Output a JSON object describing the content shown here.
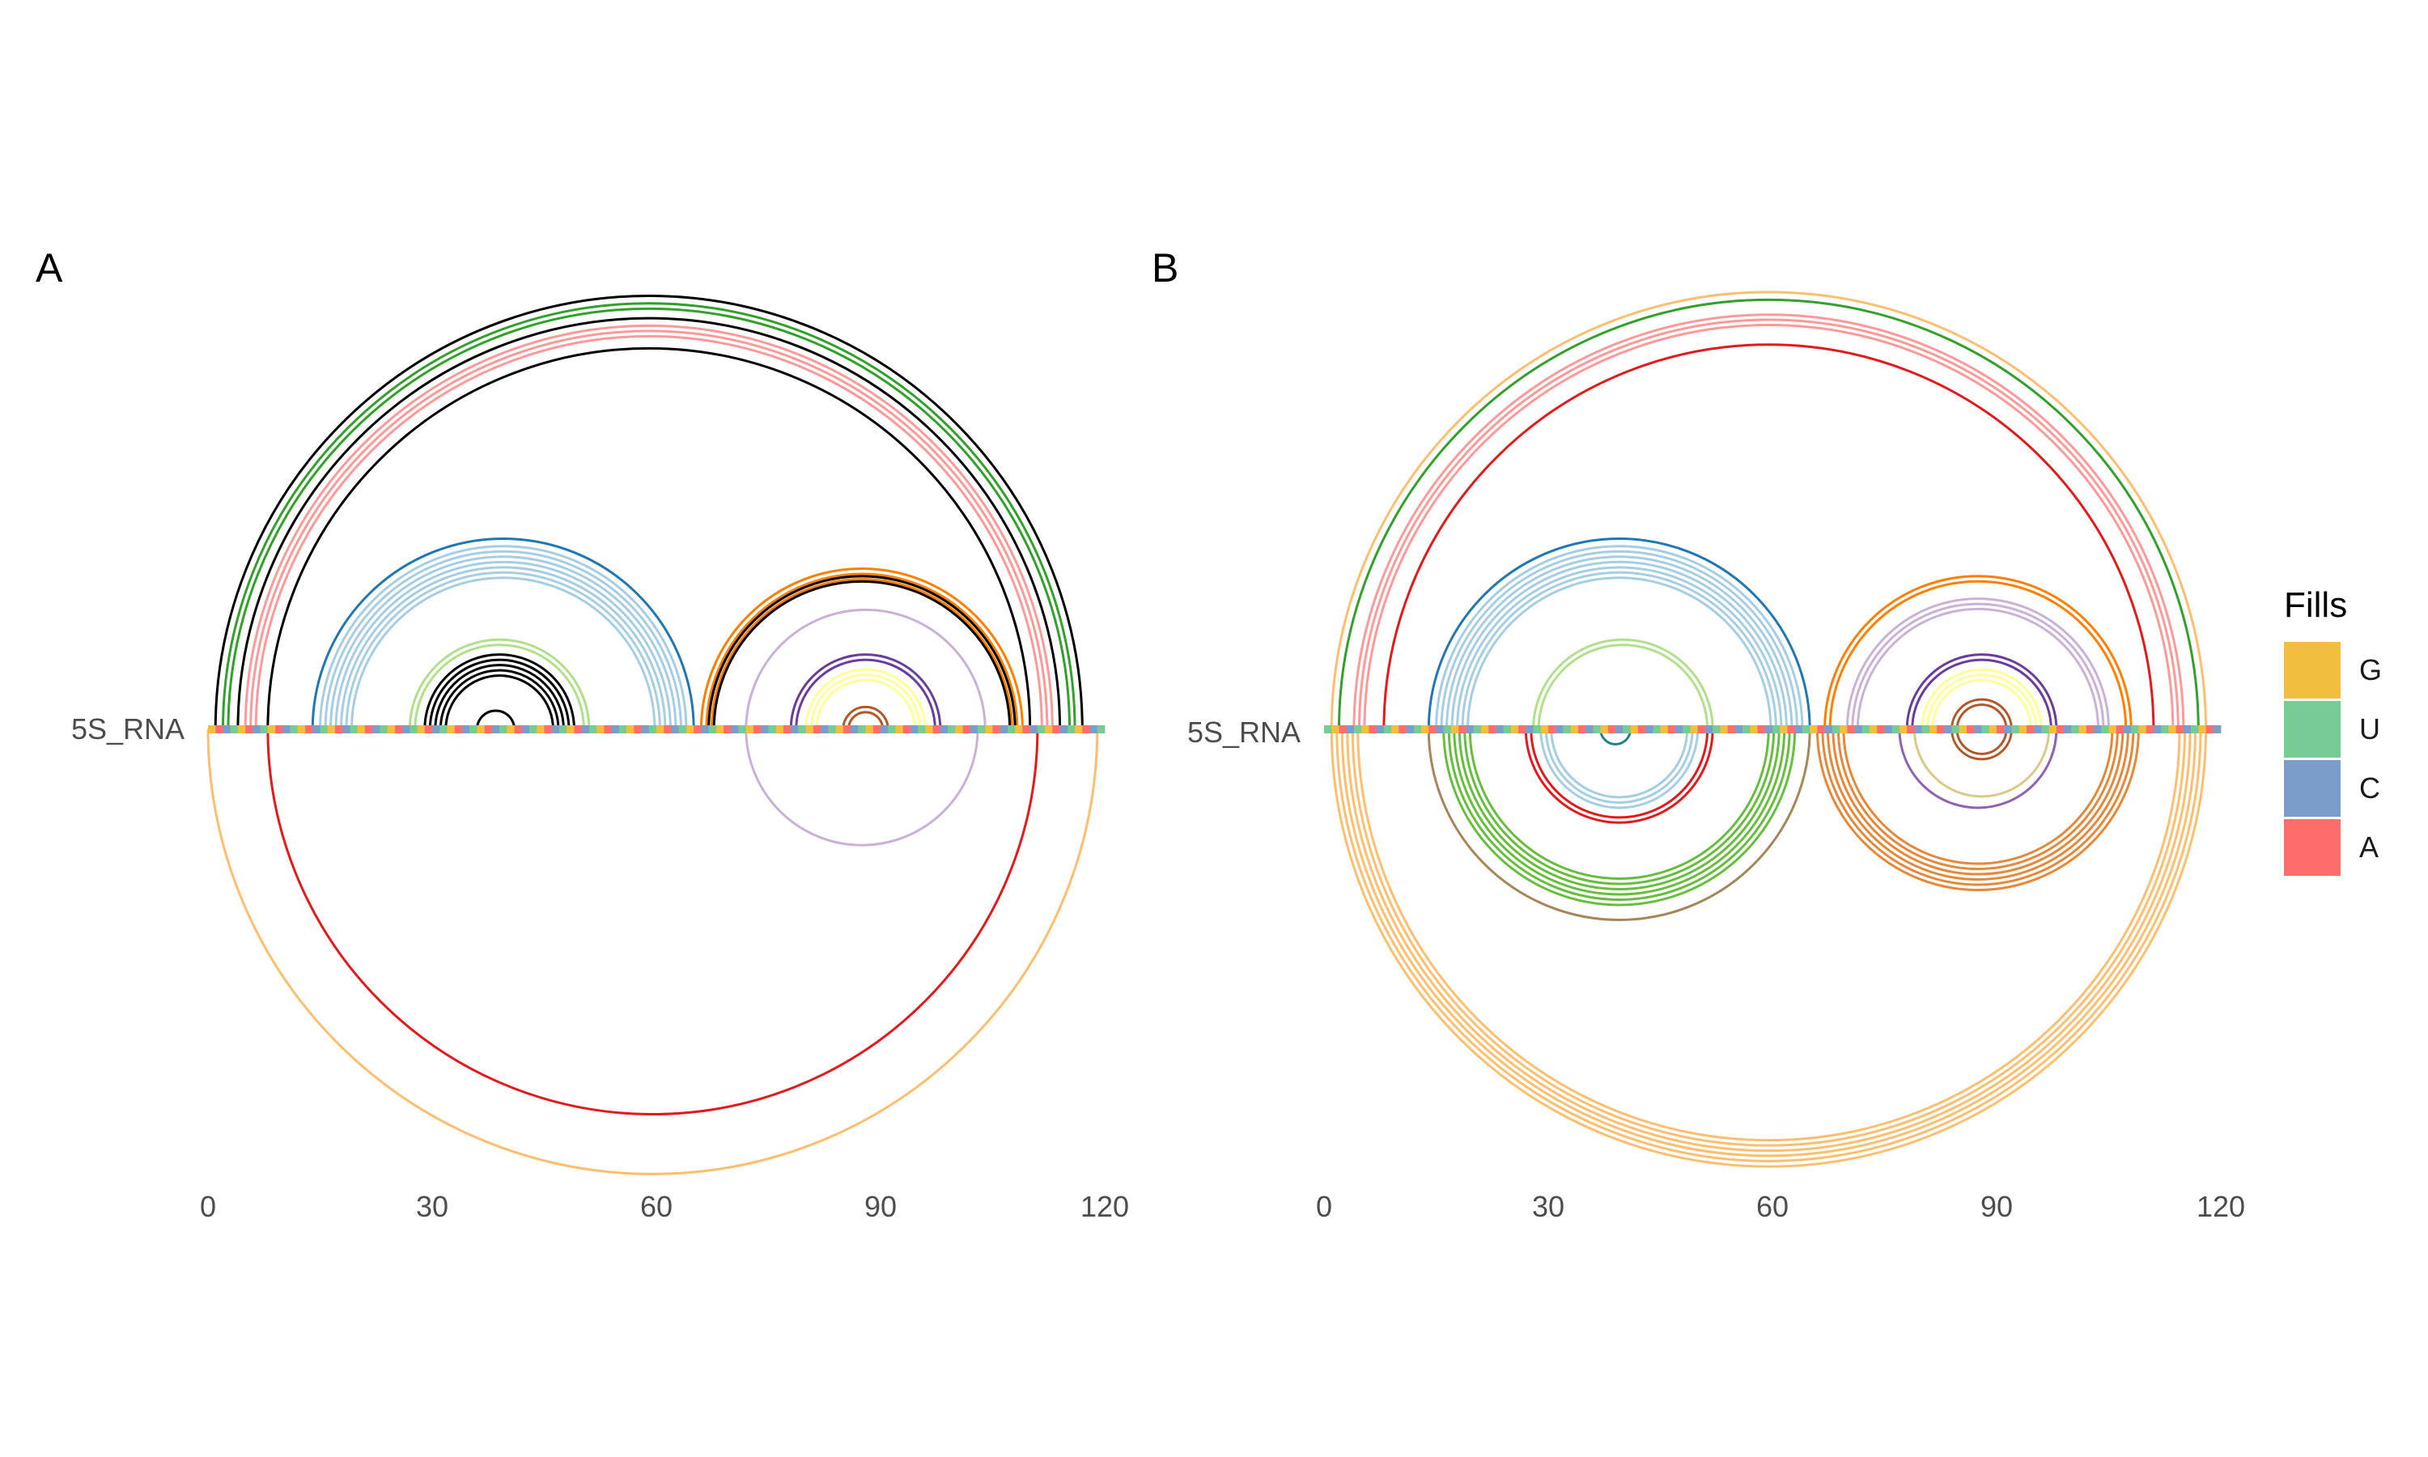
{
  "chart_data": [
    {
      "type": "arc",
      "panel": "A",
      "track_label": "5S_RNA",
      "xlim": [
        0,
        120
      ],
      "x_ticks": [
        "0",
        "30",
        "60",
        "90",
        "120"
      ],
      "sequence_length": 120,
      "arcs": [
        {
          "start": 1,
          "end": 117,
          "side": "top",
          "color": "#000000",
          "count": 1
        },
        {
          "start": 2,
          "end": 116,
          "side": "top",
          "color": "#33a02c",
          "count": 2
        },
        {
          "start": 4,
          "end": 114,
          "side": "top",
          "color": "#000000",
          "count": 1
        },
        {
          "start": 5,
          "end": 113,
          "side": "top",
          "color": "#fb9a99",
          "count": 3
        },
        {
          "start": 8,
          "end": 110,
          "side": "top",
          "color": "#000000",
          "count": 1
        },
        {
          "start": 14,
          "end": 65,
          "side": "top",
          "color": "#1f78b4",
          "count": 1
        },
        {
          "start": 15,
          "end": 64,
          "side": "top",
          "color": "#a6cee3",
          "count": 7
        },
        {
          "start": 27,
          "end": 51,
          "side": "top",
          "color": "#b2df8a",
          "count": 2
        },
        {
          "start": 29,
          "end": 49,
          "side": "top",
          "color": "#000000",
          "count": 5
        },
        {
          "start": 36,
          "end": 41,
          "side": "top",
          "color": "#000000",
          "count": 1
        },
        {
          "start": 66,
          "end": 109,
          "side": "top",
          "color": "#ff7f00",
          "count": 3
        },
        {
          "start": 67,
          "end": 108,
          "side": "top",
          "color": "#000000",
          "count": 2
        },
        {
          "start": 72,
          "end": 104,
          "side": "top",
          "color": "#cab2d6",
          "count": 1
        },
        {
          "start": 78,
          "end": 98,
          "side": "top",
          "color": "#6a3d9a",
          "count": 2
        },
        {
          "start": 80,
          "end": 96,
          "side": "top",
          "color": "#ffff99",
          "count": 3
        },
        {
          "start": 85,
          "end": 91,
          "side": "top",
          "color": "#b15928",
          "count": 2
        },
        {
          "start": 0,
          "end": 119,
          "side": "bottom",
          "color": "#fdbf6f",
          "count": 1
        },
        {
          "start": 8,
          "end": 111,
          "side": "bottom",
          "color": "#e31a1c",
          "count": 1
        },
        {
          "start": 72,
          "end": 103,
          "side": "bottom",
          "color": "#cab2d6",
          "count": 1
        }
      ]
    },
    {
      "type": "arc",
      "panel": "B",
      "track_label": "5S_RNA",
      "xlim": [
        0,
        120
      ],
      "x_ticks": [
        "0",
        "30",
        "60",
        "90",
        "120"
      ],
      "sequence_length": 120,
      "arcs": [
        {
          "start": 1,
          "end": 118,
          "side": "top",
          "color": "#fdbf6f",
          "count": 1
        },
        {
          "start": 2,
          "end": 117,
          "side": "top",
          "color": "#33a02c",
          "count": 1
        },
        {
          "start": 4,
          "end": 115,
          "side": "top",
          "color": "#fb9a99",
          "count": 3
        },
        {
          "start": 8,
          "end": 111,
          "side": "top",
          "color": "#e31a1c",
          "count": 1
        },
        {
          "start": 14,
          "end": 65,
          "side": "top",
          "color": "#1f78b4",
          "count": 1
        },
        {
          "start": 15,
          "end": 64,
          "side": "top",
          "color": "#a6cee3",
          "count": 7
        },
        {
          "start": 28,
          "end": 52,
          "side": "top",
          "color": "#b2df8a",
          "count": 2
        },
        {
          "start": 67,
          "end": 108,
          "side": "top",
          "color": "#ff7f00",
          "count": 2
        },
        {
          "start": 70,
          "end": 105,
          "side": "top",
          "color": "#cab2d6",
          "count": 3
        },
        {
          "start": 78,
          "end": 98,
          "side": "top",
          "color": "#6a3d9a",
          "count": 2
        },
        {
          "start": 80,
          "end": 96,
          "side": "top",
          "color": "#ffff99",
          "count": 3
        },
        {
          "start": 84,
          "end": 92,
          "side": "top",
          "color": "#b15928",
          "count": 2
        },
        {
          "start": 1,
          "end": 118,
          "side": "bottom",
          "color": "#fdbf6f",
          "count": 6
        },
        {
          "start": 14,
          "end": 65,
          "side": "bottom",
          "color": "#a6875a",
          "count": 1
        },
        {
          "start": 16,
          "end": 63,
          "side": "bottom",
          "color": "#66bd3e",
          "count": 6
        },
        {
          "start": 27,
          "end": 52,
          "side": "bottom",
          "color": "#e31a1c",
          "count": 2
        },
        {
          "start": 29,
          "end": 50,
          "side": "bottom",
          "color": "#a6cee3",
          "count": 3
        },
        {
          "start": 37,
          "end": 41,
          "side": "bottom",
          "color": "#2a7f8f",
          "count": 1
        },
        {
          "start": 66,
          "end": 109,
          "side": "bottom",
          "color": "#e5883a",
          "count": 6
        },
        {
          "start": 77,
          "end": 98,
          "side": "bottom",
          "color": "#8e63b5",
          "count": 1
        },
        {
          "start": 79,
          "end": 97,
          "side": "bottom",
          "color": "#d9c98a",
          "count": 1
        },
        {
          "start": 84,
          "end": 92,
          "side": "bottom",
          "color": "#b15928",
          "count": 2
        }
      ]
    }
  ],
  "legend": {
    "title": "Fills",
    "placement": "right",
    "entries": [
      {
        "label": "G",
        "color": "#f1bf3d"
      },
      {
        "label": "U",
        "color": "#77cc96"
      },
      {
        "label": "C",
        "color": "#7b9dca"
      },
      {
        "label": "A",
        "color": "#fd6d6c"
      }
    ]
  },
  "sequence_colors_cycle": [
    "#f1bf3d",
    "#77cc96",
    "#7b9dca",
    "#fd6d6c"
  ]
}
